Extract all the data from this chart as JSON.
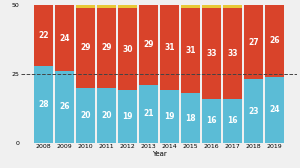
{
  "years": [
    2008,
    2009,
    2010,
    2011,
    2012,
    2013,
    2014,
    2015,
    2016,
    2017,
    2018,
    2019
  ],
  "dem": [
    28,
    26,
    20,
    20,
    19,
    21,
    19,
    18,
    16,
    16,
    23,
    24
  ],
  "rep": [
    22,
    24,
    29,
    29,
    30,
    29,
    31,
    31,
    33,
    33,
    27,
    26
  ],
  "other": [
    0,
    0,
    1,
    1,
    1,
    0,
    0,
    1,
    1,
    1,
    0,
    0
  ],
  "dem_color": "#5bbcd6",
  "rep_color": "#d9432a",
  "other_color": "#e8c838",
  "dashed_line_y": 25,
  "ylim": [
    0,
    50
  ],
  "yticks": [
    0,
    25,
    50
  ],
  "xlabel": "Year",
  "bar_width": 0.92,
  "label_fontsize": 5.5,
  "label_color": "white",
  "axis_fontsize": 4.5,
  "xlabel_fontsize": 5.0,
  "bg_color": "#f0f0f0"
}
